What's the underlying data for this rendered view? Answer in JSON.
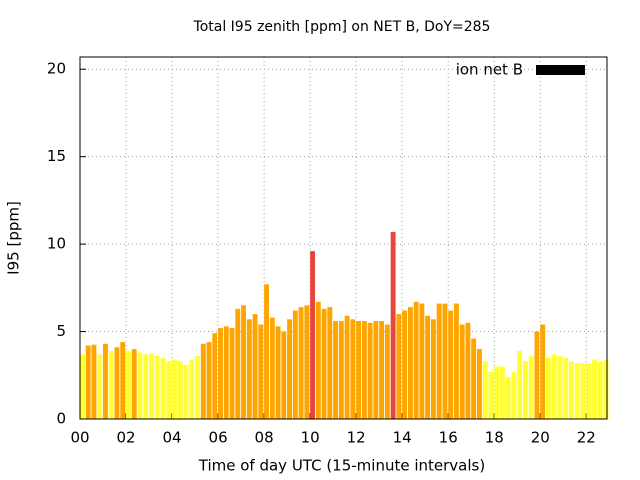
{
  "chart_data": {
    "type": "bar",
    "title": "Total I95 zenith [ppm] on NET B, DoY=285",
    "xlabel": "Time of day UTC (15-minute intervals)",
    "ylabel": "I95 [ppm]",
    "x": [
      0,
      0.25,
      0.5,
      0.75,
      1,
      1.25,
      1.5,
      1.75,
      2,
      2.25,
      2.5,
      2.75,
      3,
      3.25,
      3.5,
      3.75,
      4,
      4.25,
      4.5,
      4.75,
      5,
      5.25,
      5.5,
      5.75,
      6,
      6.25,
      6.5,
      6.75,
      7,
      7.25,
      7.5,
      7.75,
      8,
      8.25,
      8.5,
      8.75,
      9,
      9.25,
      9.5,
      9.75,
      10,
      10.25,
      10.5,
      10.75,
      11,
      11.25,
      11.5,
      11.75,
      12,
      12.25,
      12.5,
      12.75,
      13,
      13.25,
      13.5,
      13.75,
      14,
      14.25,
      14.5,
      14.75,
      15,
      15.25,
      15.5,
      15.75,
      16,
      16.25,
      16.5,
      16.75,
      17,
      17.25,
      17.5,
      17.75,
      18,
      18.25,
      18.5,
      18.75,
      19,
      19.25,
      19.5,
      19.75,
      20,
      20.25,
      20.5,
      20.75,
      21,
      21.25,
      21.5,
      21.75,
      22,
      22.25,
      22.5,
      22.75
    ],
    "series": [
      {
        "name": "ion net B",
        "color": "#000000",
        "values": [
          3.7,
          4.2,
          4.25,
          3.7,
          4.3,
          3.9,
          4.1,
          4.4,
          3.9,
          4.0,
          3.8,
          3.7,
          3.75,
          3.6,
          3.5,
          3.3,
          3.4,
          3.3,
          3.1,
          3.4,
          3.6,
          4.3,
          4.4,
          4.9,
          5.2,
          5.3,
          5.2,
          6.3,
          6.5,
          5.7,
          6.0,
          5.4,
          7.7,
          5.8,
          5.3,
          5.0,
          5.7,
          6.2,
          6.4,
          6.5,
          9.6,
          6.7,
          6.3,
          6.4,
          5.6,
          5.6,
          5.9,
          5.7,
          5.6,
          5.6,
          5.5,
          5.6,
          5.6,
          5.4,
          10.7,
          6.0,
          6.2,
          6.4,
          6.7,
          6.6,
          5.9,
          5.7,
          6.6,
          6.6,
          6.2,
          6.6,
          5.4,
          5.5,
          4.6,
          4.0,
          3.3,
          2.7,
          3.0,
          3.0,
          2.4,
          2.7,
          3.9,
          3.3,
          3.6,
          5.0,
          5.4,
          3.5,
          3.7,
          3.6,
          3.5,
          3.3,
          3.2,
          3.2,
          3.2,
          3.4,
          3.3,
          3.4
        ],
        "bar_colors": [
          "#ffff33",
          "#ffa500",
          "#ffa500",
          "#ffff33",
          "#ffa500",
          "#ffff33",
          "#ffa500",
          "#ffa500",
          "#ffff33",
          "#ffa500",
          "#ffff33",
          "#ffff33",
          "#ffff33",
          "#ffff33",
          "#ffff33",
          "#ffff33",
          "#ffff33",
          "#ffff33",
          "#ffff33",
          "#ffff33",
          "#ffff33",
          "#ffa500",
          "#ffa500",
          "#ffa500",
          "#ffa500",
          "#ffa500",
          "#ffa500",
          "#ffa500",
          "#ffa500",
          "#ffa500",
          "#ffa500",
          "#ffa500",
          "#ffa500",
          "#ffa500",
          "#ffa500",
          "#ffa500",
          "#ffa500",
          "#ffa500",
          "#ffa500",
          "#ffa500",
          "#e8453c",
          "#ffa500",
          "#ffa500",
          "#ffa500",
          "#ffa500",
          "#ffa500",
          "#ffa500",
          "#ffa500",
          "#ffa500",
          "#ffa500",
          "#ffa500",
          "#ffa500",
          "#ffa500",
          "#ffa500",
          "#e8453c",
          "#ffa500",
          "#ffa500",
          "#ffa500",
          "#ffa500",
          "#ffa500",
          "#ffa500",
          "#ffa500",
          "#ffa500",
          "#ffa500",
          "#ffa500",
          "#ffa500",
          "#ffa500",
          "#ffa500",
          "#ffa500",
          "#ffa500",
          "#ffff33",
          "#ffff33",
          "#ffff33",
          "#ffff33",
          "#ffff33",
          "#ffff33",
          "#ffff33",
          "#ffff33",
          "#ffff33",
          "#ffa500",
          "#ffa500",
          "#ffff33",
          "#ffff33",
          "#ffff33",
          "#ffff33",
          "#ffff33",
          "#ffff33",
          "#ffff33",
          "#ffff33",
          "#ffff33",
          "#ffff33",
          "#ffff33"
        ]
      }
    ],
    "xlim": [
      0,
      22.9
    ],
    "ylim": [
      0,
      20.7
    ],
    "xticks": [
      {
        "value": 0,
        "label": "00"
      },
      {
        "value": 2,
        "label": "02"
      },
      {
        "value": 4,
        "label": "04"
      },
      {
        "value": 6,
        "label": "06"
      },
      {
        "value": 8,
        "label": "08"
      },
      {
        "value": 10,
        "label": "10"
      },
      {
        "value": 12,
        "label": "12"
      },
      {
        "value": 14,
        "label": "14"
      },
      {
        "value": 16,
        "label": "16"
      },
      {
        "value": 18,
        "label": "18"
      },
      {
        "value": 20,
        "label": "20"
      },
      {
        "value": 22,
        "label": "22"
      }
    ],
    "yticks": [
      0,
      5,
      10,
      15,
      20
    ],
    "grid": true,
    "legend_position": "top-right"
  }
}
